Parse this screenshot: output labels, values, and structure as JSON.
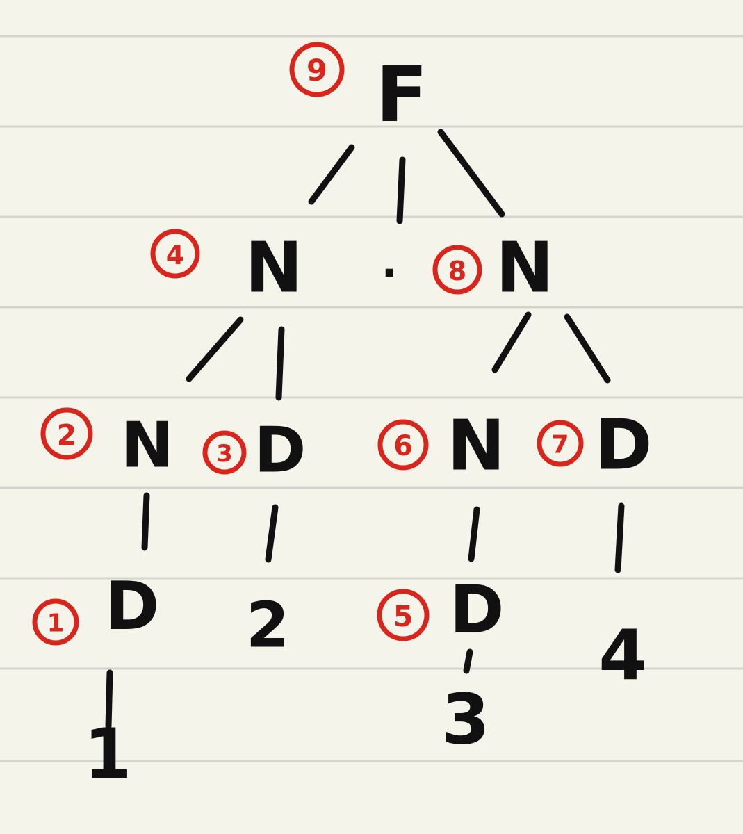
{
  "colors": {
    "paper": "#f5f4ea",
    "rule": "#d4d4d0",
    "ink": "#111111",
    "order_mark": "#d9261c"
  },
  "nodes": [
    {
      "id": "f",
      "symbol": "F",
      "order": "9"
    },
    {
      "id": "n1",
      "symbol": "N",
      "order": "4"
    },
    {
      "id": "dot",
      "symbol": "."
    },
    {
      "id": "n2",
      "symbol": "N",
      "order": "8"
    },
    {
      "id": "n3",
      "symbol": "N",
      "order": "2"
    },
    {
      "id": "d1",
      "symbol": "D",
      "order": "3"
    },
    {
      "id": "n4",
      "symbol": "N",
      "order": "6"
    },
    {
      "id": "d2",
      "symbol": "D",
      "order": "7"
    },
    {
      "id": "d3",
      "symbol": "D",
      "order": "1"
    },
    {
      "id": "v2",
      "symbol": "2"
    },
    {
      "id": "d4",
      "symbol": "D",
      "order": "5"
    },
    {
      "id": "v4",
      "symbol": "4"
    },
    {
      "id": "v1",
      "symbol": "1"
    },
    {
      "id": "v3",
      "symbol": "3"
    }
  ],
  "edges": [
    [
      "f",
      "n1"
    ],
    [
      "f",
      "dot"
    ],
    [
      "f",
      "n2"
    ],
    [
      "n1",
      "n3"
    ],
    [
      "n1",
      "d1"
    ],
    [
      "n2",
      "n4"
    ],
    [
      "n2",
      "d2"
    ],
    [
      "n3",
      "d3"
    ],
    [
      "d1",
      "v2"
    ],
    [
      "n4",
      "d4"
    ],
    [
      "d2",
      "v4"
    ],
    [
      "d3",
      "v1"
    ],
    [
      "d4",
      "v3"
    ]
  ]
}
